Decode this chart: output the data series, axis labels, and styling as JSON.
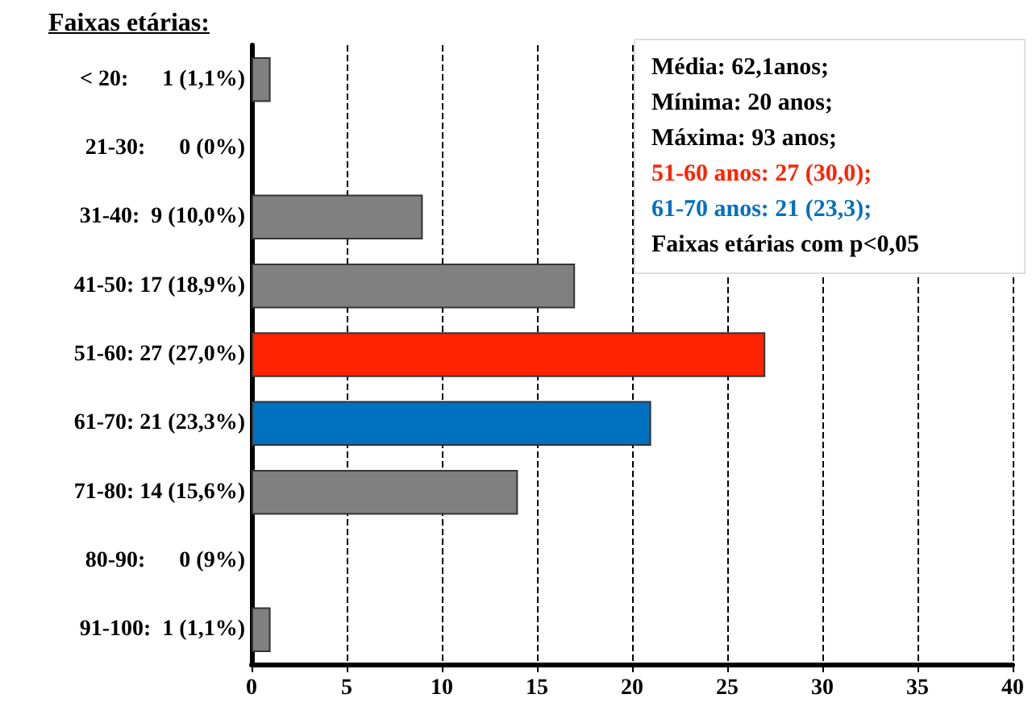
{
  "chart_data": {
    "type": "bar",
    "orientation": "horizontal",
    "title": "Faixas etárias:",
    "categories": [
      "< 20:      1 (1,1%)",
      "21-30:      0 (0%)",
      "31-40:  9 (10,0%)",
      "41-50: 17 (18,9%)",
      "51-60: 27 (27,0%)",
      "61-70: 21 (23,3%)",
      "71-80: 14 (15,6%)",
      "80-90:      0 (9%)",
      "91-100:  1 (1,1%)"
    ],
    "values": [
      1,
      0,
      9,
      17,
      27,
      21,
      14,
      0,
      1
    ],
    "colors": [
      "#808080",
      "#808080",
      "#808080",
      "#808080",
      "#ff2200",
      "#0070c0",
      "#808080",
      "#808080",
      "#808080"
    ],
    "xlim": [
      0,
      40
    ],
    "xticks": [
      0,
      5,
      10,
      15,
      20,
      25,
      30,
      35,
      40
    ],
    "grid": "x",
    "annotations": [
      "Média: 62,1anos;",
      "Mínima: 20 anos;",
      "Máxima: 93 anos;",
      "51-60 anos: 27 (30,0);",
      "61-70 anos: 21 (23,3);",
      "Faixas etárias com p<0,05"
    ]
  }
}
